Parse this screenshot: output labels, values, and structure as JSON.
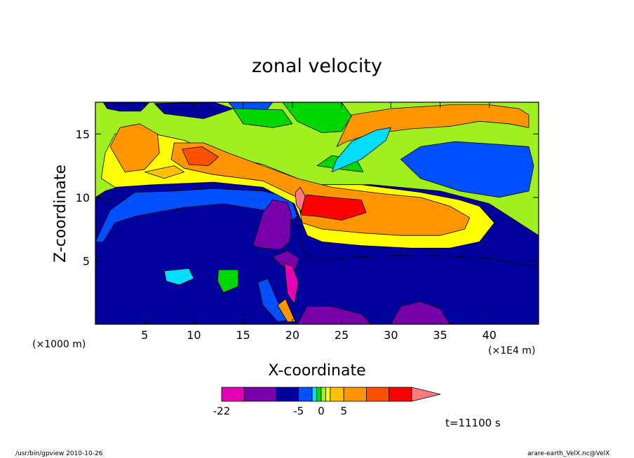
{
  "chart_data": {
    "type": "heatmap",
    "title": "zonal velocity",
    "xlabel": "X-coordinate",
    "ylabel": "Z-coordinate",
    "x_unit_left": "(×1000 m)",
    "x_unit_right": "(×1E4 m)",
    "xlim": [
      0,
      45
    ],
    "ylim": [
      0,
      17.5
    ],
    "x_ticks": [
      5,
      10,
      15,
      20,
      25,
      30,
      35,
      40
    ],
    "y_ticks": [
      5,
      10,
      15
    ],
    "colorbar": {
      "levels": [
        -22,
        -17,
        -10,
        -5,
        -2,
        -1,
        0,
        1,
        2,
        5,
        10,
        15,
        20
      ],
      "labels": [
        "-22",
        "-5",
        "0",
        "5"
      ],
      "colors": [
        "#e600b4",
        "#7800aa",
        "#00009c",
        "#0050ff",
        "#00ddff",
        "#00d700",
        "#a0f020",
        "#ffff00",
        "#ffc000",
        "#ff9600",
        "#ff5000",
        "#ff0000",
        "#ff7c7c"
      ]
    },
    "time_label": "t=11100 s",
    "regions": [
      {
        "level": "-10",
        "points": [
          [
            0,
            0
          ],
          [
            45,
            0
          ],
          [
            45,
            4.5
          ],
          [
            40,
            5.2
          ],
          [
            33,
            5.5
          ],
          [
            26,
            5.3
          ],
          [
            22,
            5
          ],
          [
            21,
            6
          ],
          [
            20,
            9.5
          ],
          [
            17,
            10.5
          ],
          [
            12,
            10.7
          ],
          [
            7,
            10
          ],
          [
            2,
            9.8
          ],
          [
            0,
            10
          ]
        ]
      },
      {
        "level": "-5",
        "points": [
          [
            0,
            6.5
          ],
          [
            1.5,
            9
          ],
          [
            4,
            10.4
          ],
          [
            8,
            10.5
          ],
          [
            12,
            10.7
          ],
          [
            17,
            10.5
          ],
          [
            19.8,
            10
          ],
          [
            20.5,
            8.5
          ],
          [
            19.5,
            8
          ],
          [
            17,
            9
          ],
          [
            13,
            9.5
          ],
          [
            9,
            9.2
          ],
          [
            6,
            8.8
          ],
          [
            4,
            8.5
          ],
          [
            2,
            8
          ],
          [
            0.8,
            6.5
          ]
        ]
      },
      {
        "level": "-17",
        "points": [
          [
            16,
            6.2
          ],
          [
            17,
            8.8
          ],
          [
            18,
            9.8
          ],
          [
            19.5,
            9.6
          ],
          [
            19.9,
            8.6
          ],
          [
            19.7,
            6.5
          ],
          [
            18.8,
            5.9
          ],
          [
            17,
            6
          ]
        ]
      },
      {
        "level": "-17",
        "points": [
          [
            18,
            5.3
          ],
          [
            19.5,
            5.8
          ],
          [
            20.7,
            5.2
          ],
          [
            20.2,
            4.2
          ],
          [
            19,
            4.6
          ]
        ]
      },
      {
        "level": "-17",
        "points": [
          [
            20.5,
            0
          ],
          [
            28,
            0
          ],
          [
            27,
            0.8
          ],
          [
            24,
            1.4
          ],
          [
            21.5,
            1.4
          ]
        ]
      },
      {
        "level": "-17",
        "points": [
          [
            30,
            0
          ],
          [
            36,
            0
          ],
          [
            35,
            1.2
          ],
          [
            33,
            1.8
          ],
          [
            31,
            1.4
          ]
        ]
      },
      {
        "level": "-22",
        "points": [
          [
            19.2,
            4.8
          ],
          [
            19.5,
            2.4
          ],
          [
            20.2,
            1.6
          ],
          [
            20.6,
            3.3
          ],
          [
            20,
            4.6
          ]
        ]
      },
      {
        "level": "-2",
        "points": [
          [
            7,
            4.2
          ],
          [
            9.5,
            4.4
          ],
          [
            10,
            3.6
          ],
          [
            8.5,
            3.1
          ],
          [
            7.2,
            3.4
          ]
        ]
      },
      {
        "level": "-1",
        "points": [
          [
            12.5,
            4.3
          ],
          [
            14.5,
            4.3
          ],
          [
            14.5,
            3
          ],
          [
            13,
            2.5
          ],
          [
            12.4,
            3.4
          ]
        ]
      },
      {
        "level": "-5",
        "points": [
          [
            16.5,
            3.3
          ],
          [
            17.5,
            3.6
          ],
          [
            18.5,
            1.8
          ],
          [
            19.5,
            0.3
          ],
          [
            18.5,
            0.2
          ],
          [
            17,
            1.5
          ]
        ]
      },
      {
        "level": "5",
        "points": [
          [
            18.5,
            1.5
          ],
          [
            19.5,
            0.2
          ],
          [
            20.3,
            0.2
          ],
          [
            19.3,
            2
          ]
        ]
      },
      {
        "level": "0",
        "points": [
          [
            0,
            17.5
          ],
          [
            45,
            17.5
          ],
          [
            45,
            7
          ],
          [
            42,
            8.5
          ],
          [
            40,
            9.5
          ],
          [
            35,
            10.5
          ],
          [
            28,
            11
          ],
          [
            22,
            11
          ],
          [
            20,
            10.6
          ],
          [
            16,
            11
          ],
          [
            12,
            11.3
          ],
          [
            7,
            11.2
          ],
          [
            3,
            11
          ],
          [
            1,
            10.5
          ],
          [
            0,
            10
          ]
        ]
      },
      {
        "level": "1",
        "points": [
          [
            1,
            13.5
          ],
          [
            2,
            15
          ],
          [
            6,
            15
          ],
          [
            9,
            14.5
          ],
          [
            12,
            13.5
          ],
          [
            17,
            12.6
          ],
          [
            20.2,
            11.6
          ],
          [
            22,
            11
          ],
          [
            27,
            11
          ],
          [
            33,
            10.4
          ],
          [
            37,
            9.8
          ],
          [
            39,
            9.3
          ],
          [
            40.5,
            8
          ],
          [
            39,
            6.5
          ],
          [
            36,
            6
          ],
          [
            32,
            6
          ],
          [
            27,
            6.2
          ],
          [
            23,
            6.5
          ],
          [
            21.5,
            7
          ],
          [
            20.2,
            9.5
          ],
          [
            17,
            10.8
          ],
          [
            12,
            11.2
          ],
          [
            6,
            11
          ],
          [
            2,
            10.8
          ],
          [
            0.6,
            11.5
          ]
        ]
      },
      {
        "level": "5",
        "points": [
          [
            1.5,
            14
          ],
          [
            2.5,
            15.5
          ],
          [
            4.5,
            15.8
          ],
          [
            6.3,
            15
          ],
          [
            6.5,
            13.5
          ],
          [
            5,
            12.2
          ],
          [
            3,
            12
          ]
        ]
      },
      {
        "level": "5",
        "points": [
          [
            8,
            14.3
          ],
          [
            11,
            14.3
          ],
          [
            13.5,
            13.5
          ],
          [
            17,
            12.5
          ],
          [
            20.5,
            11.5
          ],
          [
            24,
            10.8
          ],
          [
            29,
            10.3
          ],
          [
            33,
            10
          ],
          [
            36,
            9.3
          ],
          [
            38,
            8.4
          ],
          [
            37.5,
            7.5
          ],
          [
            35,
            7
          ],
          [
            31,
            7
          ],
          [
            27,
            7.2
          ],
          [
            23,
            7.5
          ],
          [
            21,
            8
          ],
          [
            20.5,
            10
          ],
          [
            17,
            11.3
          ],
          [
            12,
            11.8
          ],
          [
            9,
            12.3
          ],
          [
            7.7,
            13
          ]
        ]
      },
      {
        "level": "10",
        "points": [
          [
            8.8,
            13.8
          ],
          [
            10.8,
            14
          ],
          [
            12.5,
            13.2
          ],
          [
            11.5,
            12.5
          ],
          [
            9.5,
            12.6
          ]
        ]
      },
      {
        "level": "15",
        "points": [
          [
            20.5,
            9.5
          ],
          [
            21.5,
            10.2
          ],
          [
            24,
            10
          ],
          [
            27,
            9.8
          ],
          [
            27.5,
            8.8
          ],
          [
            25,
            8.2
          ],
          [
            22.5,
            8.5
          ],
          [
            21,
            8.6
          ]
        ]
      },
      {
        "level": "20",
        "points": [
          [
            20.3,
            10.4
          ],
          [
            20.8,
            10.8
          ],
          [
            21.3,
            10.1
          ],
          [
            20.9,
            8.9
          ],
          [
            20.4,
            9.4
          ]
        ]
      },
      {
        "level": "5",
        "points": [
          [
            24.5,
            14
          ],
          [
            26,
            16.5
          ],
          [
            30,
            17
          ],
          [
            36,
            17.3
          ],
          [
            40,
            17.3
          ],
          [
            43,
            17
          ],
          [
            44,
            16.5
          ],
          [
            44,
            15.5
          ],
          [
            42,
            15.8
          ],
          [
            39,
            16
          ],
          [
            36,
            15.6
          ],
          [
            32,
            15.4
          ],
          [
            28,
            15
          ],
          [
            25.5,
            14.4
          ]
        ]
      },
      {
        "level": "-1",
        "points": [
          [
            19,
            17.5
          ],
          [
            20.5,
            16
          ],
          [
            23,
            15.1
          ],
          [
            25,
            15.2
          ],
          [
            26,
            16.4
          ],
          [
            25,
            17.5
          ]
        ]
      },
      {
        "level": "-1",
        "points": [
          [
            22.5,
            12.5
          ],
          [
            25,
            12.2
          ],
          [
            27.2,
            12
          ],
          [
            26.5,
            13
          ],
          [
            24,
            13.3
          ]
        ]
      },
      {
        "level": "-2",
        "points": [
          [
            24,
            12
          ],
          [
            27,
            13
          ],
          [
            29.5,
            14.5
          ],
          [
            30,
            15.5
          ],
          [
            28.5,
            15.3
          ],
          [
            26,
            14.4
          ],
          [
            24.5,
            13
          ]
        ]
      },
      {
        "level": "-5",
        "points": [
          [
            31,
            13
          ],
          [
            33,
            14
          ],
          [
            36.5,
            14.4
          ],
          [
            40.5,
            14.2
          ],
          [
            44,
            14
          ],
          [
            44.5,
            12.5
          ],
          [
            44,
            10.5
          ],
          [
            41,
            10
          ],
          [
            37,
            10.5
          ],
          [
            33,
            11.5
          ]
        ]
      },
      {
        "level": "-10",
        "points": [
          [
            0.8,
            17.5
          ],
          [
            5.5,
            17.5
          ],
          [
            4.6,
            16.8
          ],
          [
            2.5,
            16.8
          ],
          [
            1.2,
            17
          ]
        ]
      },
      {
        "level": "-10",
        "points": [
          [
            6,
            17.4
          ],
          [
            12,
            17.5
          ],
          [
            14,
            17
          ],
          [
            11,
            16.2
          ],
          [
            7,
            16.6
          ]
        ]
      },
      {
        "level": "-5",
        "points": [
          [
            13.5,
            17.5
          ],
          [
            18,
            17.5
          ],
          [
            17,
            16.5
          ],
          [
            14.5,
            16.6
          ]
        ]
      },
      {
        "level": "-1",
        "points": [
          [
            14,
            17
          ],
          [
            19,
            16.9
          ],
          [
            20,
            15.8
          ],
          [
            18,
            15.5
          ],
          [
            15,
            15.8
          ]
        ]
      },
      {
        "level": "2",
        "points": [
          [
            5,
            12
          ],
          [
            8,
            12.5
          ],
          [
            9,
            12
          ],
          [
            7,
            11.5
          ]
        ]
      }
    ]
  }
}
